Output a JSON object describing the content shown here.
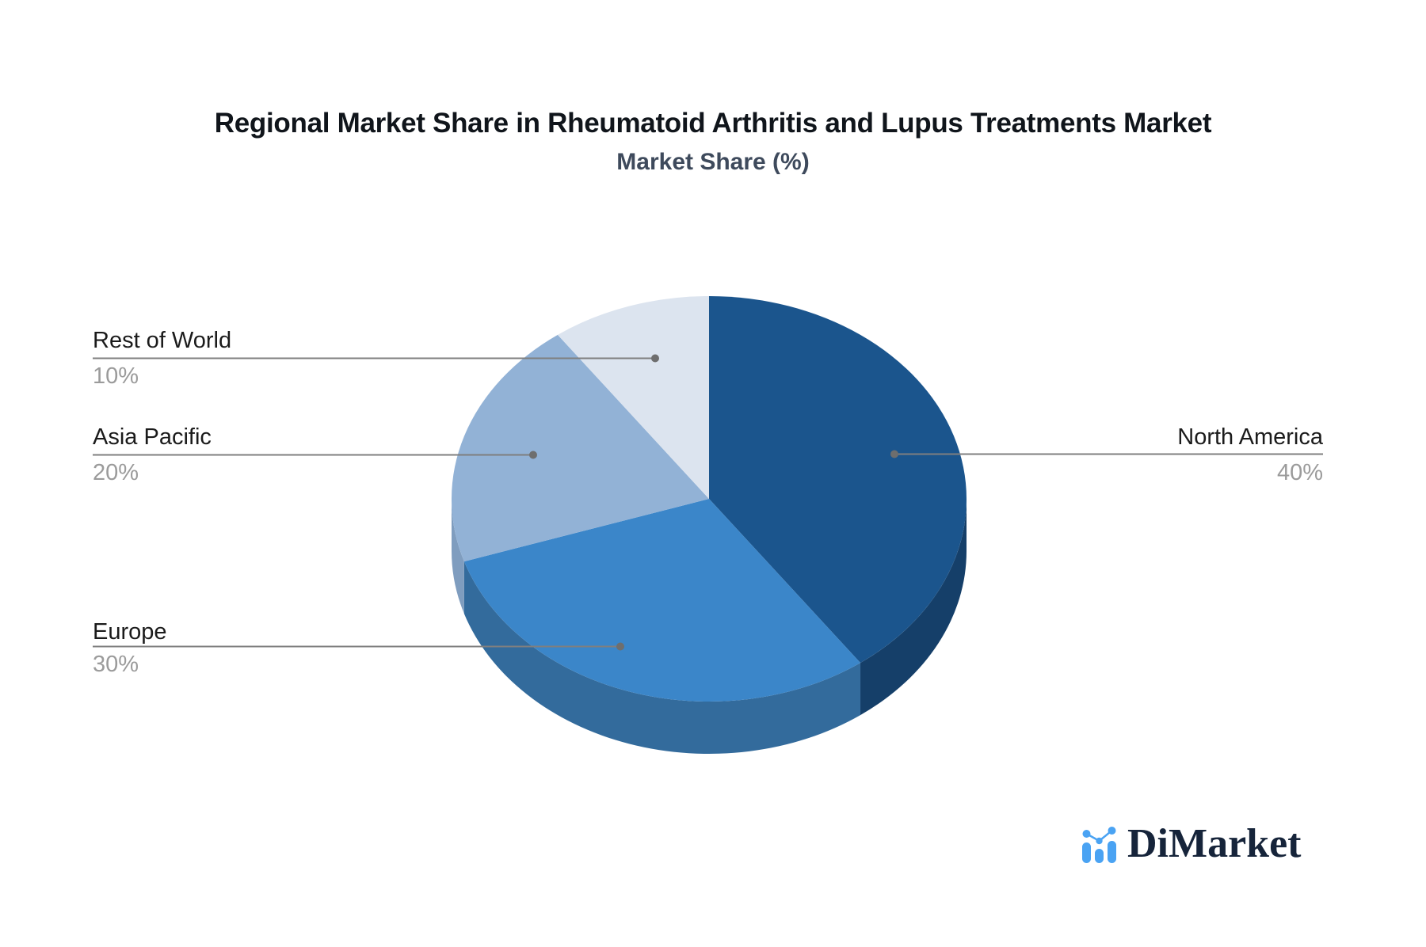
{
  "title": "Regional Market Share in Rheumatoid Arthritis and Lupus Treatments Market",
  "subtitle": "Market Share (%)",
  "chart_data": {
    "type": "pie",
    "title": "Regional Market Share in Rheumatoid Arthritis and Lupus Treatments Market",
    "subtitle": "Market Share (%)",
    "unit": "%",
    "style": "3d-pie",
    "direction": "clockwise",
    "start_angle_deg": 0,
    "legend_position": "callout-labels",
    "slices": [
      {
        "label": "North America",
        "value": 40,
        "display": "40%",
        "color": "#1b558d",
        "side_color": "#153f69"
      },
      {
        "label": "Europe",
        "value": 30,
        "display": "30%",
        "color": "#3b86c9",
        "side_color": "#336b9c"
      },
      {
        "label": "Asia Pacific",
        "value": 20,
        "display": "20%",
        "color": "#92b2d6",
        "side_color": "#7f9dbf"
      },
      {
        "label": "Rest of World",
        "value": 10,
        "display": "10%",
        "color": "#dce4ef",
        "side_color": "#c3cfdf"
      }
    ],
    "callout_line_color": "#7f7f7f",
    "callout_dot_color": "#6e6e6e"
  },
  "logo": {
    "text": "DiMarket",
    "mark_color": "#4aa3f3",
    "text_color": "#16243a"
  }
}
